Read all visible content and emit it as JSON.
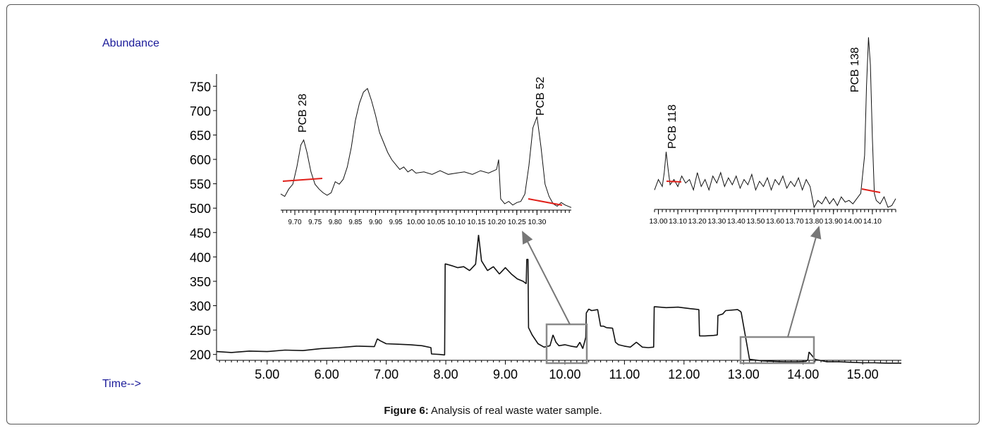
{
  "caption": {
    "label": "Figure 6:",
    "text": "Analysis of real waste water sample."
  },
  "chart_data": [
    {
      "type": "line",
      "ylabel": "Abundance",
      "xlabel": "Time-->",
      "xlim": [
        4.15,
        15.65
      ],
      "ylim": [
        188,
        775
      ],
      "xticks": [
        "5.00",
        "6.00",
        "7.00",
        "8.00",
        "9.00",
        "10.00",
        "11.00",
        "12.00",
        "13.00",
        "14.00",
        "15.00"
      ],
      "yticks": [
        "200",
        "250",
        "300",
        "350",
        "400",
        "450",
        "500",
        "550",
        "600",
        "650",
        "700",
        "750"
      ],
      "colors": {
        "line": "#111111",
        "box": "#8a8a8a",
        "arrow": "#777777",
        "text_axis": "#1a1a99"
      },
      "series": [
        {
          "x": [
            4.15,
            4.4,
            4.7,
            5.0,
            5.3,
            5.6,
            5.9,
            6.2,
            6.5,
            6.8,
            6.85,
            6.9,
            7.0,
            7.2,
            7.4,
            7.6,
            7.75,
            7.76,
            7.9,
            7.98,
            7.99,
            8.1,
            8.2,
            8.3,
            8.4,
            8.5,
            8.55,
            8.6,
            8.7,
            8.8,
            8.9,
            9.0,
            9.1,
            9.2,
            9.3,
            9.35,
            9.36,
            9.38,
            9.39,
            9.45,
            9.55,
            9.65,
            9.75,
            9.8,
            9.85,
            9.9,
            10.0,
            10.1,
            10.2,
            10.25,
            10.3,
            10.35,
            10.36,
            10.4,
            10.45,
            10.55,
            10.6,
            10.65,
            10.7,
            10.8,
            10.85,
            10.9,
            11.0,
            11.1,
            11.2,
            11.3,
            11.4,
            11.49,
            11.5,
            11.7,
            11.9,
            12.1,
            12.25,
            12.26,
            12.35,
            12.5,
            12.56,
            12.57,
            12.65,
            12.7,
            12.9,
            12.95,
            12.96,
            13.1,
            13.3,
            13.5,
            13.7,
            13.9,
            14.05,
            14.08,
            14.1,
            14.2,
            14.4,
            14.6,
            14.8,
            15.0,
            15.2,
            15.4,
            15.65
          ],
          "y": [
            206,
            204,
            207,
            206,
            209,
            208,
            212,
            214,
            217,
            216,
            232,
            228,
            222,
            221,
            220,
            218,
            214,
            201,
            200,
            199,
            386,
            382,
            378,
            380,
            372,
            385,
            445,
            392,
            372,
            380,
            365,
            378,
            365,
            355,
            350,
            345,
            395,
            395,
            255,
            240,
            222,
            215,
            218,
            240,
            225,
            218,
            220,
            217,
            215,
            225,
            212,
            235,
            285,
            293,
            290,
            292,
            258,
            258,
            255,
            254,
            225,
            220,
            217,
            215,
            225,
            215,
            214,
            215,
            298,
            296,
            297,
            294,
            292,
            238,
            238,
            239,
            240,
            280,
            283,
            290,
            292,
            288,
            286,
            190,
            187,
            186,
            185,
            185,
            186,
            189,
            205,
            190,
            185,
            185,
            184,
            183,
            183,
            182,
            182
          ]
        }
      ],
      "annotations": [
        {
          "label": "PCB 28"
        },
        {
          "label": "PCB 52"
        },
        {
          "label": "PCB 118"
        },
        {
          "label": "PCB 138"
        }
      ]
    },
    {
      "type": "line",
      "title": "inset-left",
      "xlim": [
        9.665,
        10.385
      ],
      "ylim": [
        0,
        1
      ],
      "xticks": [
        "9.70",
        "9.75",
        "9.80",
        "9.85",
        "9.90",
        "9.95",
        "10.00",
        "10.05",
        "10.10",
        "10.15",
        "10.20",
        "10.25",
        "10.30"
      ],
      "series": [
        {
          "x": [
            9.665,
            9.675,
            9.685,
            9.695,
            9.705,
            9.715,
            9.722,
            9.73,
            9.74,
            9.75,
            9.76,
            9.77,
            9.78,
            9.79,
            9.8,
            9.81,
            9.82,
            9.83,
            9.84,
            9.85,
            9.86,
            9.87,
            9.88,
            9.89,
            9.9,
            9.91,
            9.92,
            9.93,
            9.94,
            9.95,
            9.96,
            9.97,
            9.98,
            9.99,
            10.0,
            10.02,
            10.04,
            10.06,
            10.08,
            10.1,
            10.12,
            10.14,
            10.16,
            10.18,
            10.2,
            10.205,
            10.21,
            10.22,
            10.23,
            10.24,
            10.25,
            10.26,
            10.27,
            10.28,
            10.29,
            10.3,
            10.31,
            10.32,
            10.33,
            10.34,
            10.35,
            10.36,
            10.37,
            10.385
          ],
          "y": [
            0.12,
            0.1,
            0.16,
            0.2,
            0.34,
            0.52,
            0.56,
            0.46,
            0.3,
            0.2,
            0.16,
            0.13,
            0.11,
            0.13,
            0.22,
            0.2,
            0.24,
            0.34,
            0.5,
            0.72,
            0.86,
            0.95,
            0.98,
            0.88,
            0.76,
            0.62,
            0.54,
            0.46,
            0.4,
            0.36,
            0.32,
            0.34,
            0.3,
            0.32,
            0.29,
            0.3,
            0.28,
            0.31,
            0.28,
            0.29,
            0.3,
            0.28,
            0.31,
            0.29,
            0.32,
            0.4,
            0.08,
            0.04,
            0.06,
            0.03,
            0.05,
            0.06,
            0.12,
            0.35,
            0.66,
            0.75,
            0.5,
            0.2,
            0.1,
            0.04,
            0.02,
            0.05,
            0.03,
            0.01
          ]
        }
      ],
      "annotations": [
        {
          "label": "PCB 28"
        },
        {
          "label": "PCB 52"
        }
      ]
    },
    {
      "type": "line",
      "title": "inset-right",
      "xlim": [
        12.98,
        14.22
      ],
      "ylim": [
        0,
        1
      ],
      "xticks": [
        "13.00",
        "13.10",
        "13.20",
        "13.30",
        "13.40",
        "13.50",
        "13.60",
        "13.70",
        "13.80",
        "13.90",
        "14.00",
        "14.10"
      ],
      "series": [
        {
          "x": [
            12.98,
            13.0,
            13.02,
            13.03,
            13.04,
            13.05,
            13.06,
            13.08,
            13.1,
            13.12,
            13.14,
            13.16,
            13.18,
            13.2,
            13.22,
            13.24,
            13.26,
            13.28,
            13.3,
            13.32,
            13.34,
            13.36,
            13.38,
            13.4,
            13.42,
            13.44,
            13.46,
            13.48,
            13.5,
            13.52,
            13.54,
            13.56,
            13.58,
            13.6,
            13.62,
            13.64,
            13.66,
            13.68,
            13.7,
            13.72,
            13.74,
            13.76,
            13.78,
            13.8,
            13.82,
            13.84,
            13.86,
            13.88,
            13.9,
            13.92,
            13.94,
            13.96,
            13.98,
            14.0,
            14.02,
            14.04,
            14.06,
            14.07,
            14.08,
            14.09,
            14.1,
            14.11,
            14.12,
            14.14,
            14.16,
            14.18,
            14.2,
            14.22
          ],
          "y": [
            0.1,
            0.16,
            0.12,
            0.2,
            0.32,
            0.22,
            0.13,
            0.16,
            0.12,
            0.18,
            0.14,
            0.16,
            0.1,
            0.2,
            0.12,
            0.16,
            0.1,
            0.18,
            0.14,
            0.2,
            0.12,
            0.17,
            0.13,
            0.18,
            0.11,
            0.16,
            0.13,
            0.19,
            0.1,
            0.15,
            0.12,
            0.17,
            0.1,
            0.16,
            0.13,
            0.18,
            0.11,
            0.15,
            0.12,
            0.17,
            0.1,
            0.16,
            0.12,
            0.0,
            0.04,
            0.02,
            0.06,
            0.02,
            0.05,
            0.01,
            0.06,
            0.03,
            0.04,
            0.02,
            0.05,
            0.08,
            0.3,
            0.7,
            0.98,
            0.82,
            0.4,
            0.08,
            0.04,
            0.02,
            0.06,
            0.0,
            0.01,
            0.05
          ]
        }
      ],
      "annotations": [
        {
          "label": "PCB 118"
        },
        {
          "label": "PCB 138"
        }
      ]
    }
  ]
}
